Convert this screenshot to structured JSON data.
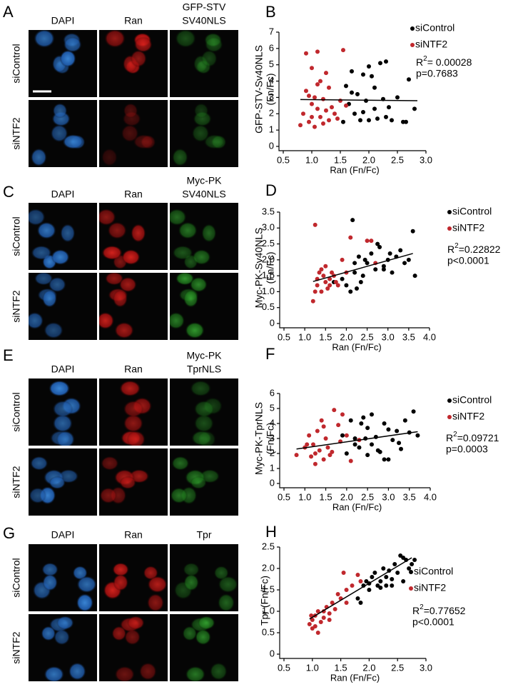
{
  "figure": {
    "panels": [
      {
        "letter": "A",
        "columns": [
          [
            "DAPI"
          ],
          [
            "Ran"
          ],
          [
            "GFP-STV",
            "SV40NLS"
          ]
        ],
        "rows": [
          "siControl",
          "siNTF2"
        ]
      },
      {
        "letter": "C",
        "columns": [
          [
            "DAPI"
          ],
          [
            "Ran"
          ],
          [
            "Myc-PK",
            "SV40NLS"
          ]
        ],
        "rows": [
          "siControl",
          "siNTF2"
        ]
      },
      {
        "letter": "E",
        "columns": [
          [
            "DAPI"
          ],
          [
            "Ran"
          ],
          [
            "Myc-PK",
            "TprNLS"
          ]
        ],
        "rows": [
          "siControl",
          "siNTF2"
        ]
      },
      {
        "letter": "G",
        "columns": [
          [
            "DAPI"
          ],
          [
            "Ran"
          ],
          [
            "Tpr"
          ]
        ],
        "rows": [
          "siControl",
          "siNTF2"
        ]
      }
    ]
  },
  "chart_data": [
    {
      "type": "scatter",
      "panel": "B",
      "xlabel": "Ran (Fn/Fc)",
      "ylabel": [
        "GFP-STV-Sv40NLS",
        "(Fn/Fc)"
      ],
      "xlim": [
        0.5,
        3.0
      ],
      "ylim": [
        0,
        7
      ],
      "xticks": [
        0.5,
        {
          "value": 1,
          "label": "1.0"
        },
        1.5,
        {
          "value": 2,
          "label": "2.0"
        },
        2.5,
        {
          "value": 3,
          "label": "3.0"
        }
      ],
      "yticks": [
        0,
        1,
        2,
        3,
        4,
        5,
        6,
        7
      ],
      "series": [
        {
          "name": "siControl",
          "color": "#000000",
          "x": [
            1.55,
            1.6,
            1.65,
            1.7,
            1.75,
            1.8,
            1.85,
            1.9,
            1.95,
            2.0,
            2.05,
            2.1,
            2.15,
            2.2,
            2.25,
            2.3,
            2.35,
            2.4,
            2.5,
            2.6,
            2.7,
            2.8,
            1.7,
            1.9,
            2.0,
            2.1,
            2.3,
            2.65
          ],
          "values": [
            1.5,
            3.7,
            2.6,
            4.6,
            2.0,
            3.2,
            1.6,
            4.4,
            2.8,
            1.6,
            4.3,
            2.3,
            1.7,
            5.1,
            2.9,
            1.8,
            2.4,
            1.6,
            3.0,
            1.5,
            4.1,
            2.3,
            3.3,
            2.1,
            4.9,
            3.6,
            5.2,
            1.5
          ]
        },
        {
          "name": "siNTF2",
          "color": "#c0282d",
          "x": [
            0.8,
            0.85,
            0.9,
            0.9,
            0.95,
            1.0,
            1.0,
            1.05,
            1.05,
            1.1,
            1.1,
            1.15,
            1.15,
            1.2,
            1.2,
            1.25,
            1.25,
            1.3,
            1.3,
            1.35,
            1.4,
            1.45,
            1.5,
            1.55,
            1.6,
            0.95,
            1.0,
            1.1
          ],
          "values": [
            1.3,
            2.0,
            5.7,
            3.4,
            1.5,
            2.6,
            4.8,
            1.2,
            3.0,
            2.3,
            5.8,
            1.8,
            4.0,
            1.4,
            2.9,
            2.2,
            4.5,
            1.6,
            3.6,
            2.4,
            2.0,
            1.7,
            2.8,
            5.9,
            2.5,
            3.1,
            1.8,
            3.8
          ]
        }
      ],
      "fit": {
        "x": [
          0.8,
          2.85
        ],
        "values": [
          2.87,
          2.8
        ]
      },
      "r2_label": "R",
      "r2_sup": "2",
      "r2_value": "= 0.00028",
      "p_value": "p=0.7683"
    },
    {
      "type": "scatter",
      "panel": "D",
      "xlabel": "Ran (Fn/Fc)",
      "ylabel": [
        "Myc-PK-Sv40NLS",
        "(Fn/Fc)"
      ],
      "xlim": [
        0.5,
        4.0
      ],
      "ylim": [
        0,
        3.5
      ],
      "xticks": [
        0.5,
        {
          "value": 1,
          "label": "1.0"
        },
        1.5,
        {
          "value": 2,
          "label": "2.0"
        },
        2.5,
        {
          "value": 3,
          "label": "3.0"
        },
        3.5,
        {
          "value": 4,
          "label": "4.0"
        }
      ],
      "yticks": [
        0,
        0.5,
        {
          "value": 1,
          "label": "1.0"
        },
        1.5,
        {
          "value": 2,
          "label": "2.0"
        },
        2.5,
        {
          "value": 3,
          "label": "3.0"
        },
        3.5
      ],
      "series": [
        {
          "name": "siControl",
          "color": "#000000",
          "x": [
            1.7,
            1.9,
            2.0,
            2.1,
            2.15,
            2.2,
            2.25,
            2.3,
            2.4,
            2.5,
            2.6,
            2.7,
            2.8,
            2.9,
            3.0,
            3.1,
            3.2,
            3.3,
            3.4,
            3.5,
            3.6,
            3.65,
            2.2,
            2.45,
            2.75,
            3.05,
            2.35,
            2.9
          ],
          "values": [
            1.3,
            1.4,
            1.2,
            1.0,
            3.25,
            1.6,
            1.1,
            2.1,
            1.5,
            1.9,
            2.2,
            1.7,
            2.4,
            1.8,
            2.0,
            1.6,
            2.1,
            2.3,
            1.9,
            2.0,
            2.9,
            1.5,
            1.9,
            2.0,
            2.5,
            2.2,
            1.3,
            1.7
          ]
        },
        {
          "name": "siNTF2",
          "color": "#c0282d",
          "x": [
            1.2,
            1.25,
            1.3,
            1.3,
            1.35,
            1.4,
            1.45,
            1.5,
            1.5,
            1.55,
            1.6,
            1.65,
            1.7,
            1.8,
            1.9,
            2.0,
            2.1,
            2.5,
            2.6,
            2.7,
            1.4,
            1.6,
            1.75,
            1.25
          ],
          "values": [
            0.7,
            3.1,
            1.4,
            1.2,
            1.6,
            1.0,
            1.5,
            1.3,
            1.8,
            1.1,
            1.4,
            1.6,
            1.5,
            1.2,
            2.0,
            1.6,
            2.7,
            2.6,
            2.6,
            1.9,
            1.7,
            1.2,
            1.3,
            1.0
          ]
        }
      ],
      "fit": {
        "x": [
          1.2,
          3.6
        ],
        "values": [
          1.32,
          2.2
        ]
      },
      "r2_label": "R",
      "r2_sup": "2",
      "r2_value": "=0.22822",
      "p_value": "p<0.0001"
    },
    {
      "type": "scatter",
      "panel": "F",
      "xlabel": "Ran (Fn/Fc)",
      "ylabel": [
        "Myc-PK-TprNLS",
        "(Fn/Fc)"
      ],
      "xlim": [
        0.5,
        4.0
      ],
      "ylim": [
        0,
        6
      ],
      "xticks": [
        0.5,
        {
          "value": 1,
          "label": "1.0"
        },
        1.5,
        {
          "value": 2,
          "label": "2.0"
        },
        2.5,
        {
          "value": 3,
          "label": "3.0"
        },
        3.5,
        {
          "value": 4,
          "label": "4.0"
        }
      ],
      "yticks": [
        0,
        1,
        2,
        3,
        4,
        5,
        6
      ],
      "series": [
        {
          "name": "siControl",
          "color": "#000000",
          "x": [
            1.9,
            2.0,
            2.1,
            2.2,
            2.3,
            2.4,
            2.5,
            2.5,
            2.6,
            2.6,
            2.7,
            2.8,
            2.9,
            3.0,
            3.1,
            3.2,
            3.3,
            3.4,
            3.5,
            3.6,
            3.7,
            2.2,
            2.45,
            2.75,
            3.0,
            3.25,
            2.9,
            2.35
          ],
          "values": [
            3.2,
            2.0,
            4.2,
            3.0,
            2.4,
            4.4,
            1.9,
            3.7,
            4.6,
            2.6,
            3.1,
            2.1,
            4.0,
            1.6,
            2.9,
            3.5,
            2.3,
            4.2,
            3.4,
            4.8,
            3.2,
            2.6,
            3.0,
            2.2,
            3.6,
            2.7,
            1.6,
            4.0
          ]
        },
        {
          "name": "siNTF2",
          "color": "#c0282d",
          "x": [
            0.8,
            1.0,
            1.1,
            1.15,
            1.2,
            1.25,
            1.3,
            1.35,
            1.4,
            1.45,
            1.5,
            1.55,
            1.6,
            1.7,
            1.8,
            1.85,
            1.9,
            2.0,
            2.1,
            2.3,
            1.25,
            1.45,
            1.65,
            1.05
          ],
          "values": [
            1.9,
            2.4,
            3.2,
            1.8,
            2.6,
            1.3,
            3.5,
            2.2,
            4.2,
            1.6,
            3.0,
            2.4,
            1.9,
            4.9,
            3.9,
            2.8,
            4.6,
            3.2,
            1.5,
            2.9,
            2.0,
            3.8,
            2.1,
            2.6
          ]
        }
      ],
      "fit": {
        "x": [
          0.8,
          3.7
        ],
        "values": [
          2.3,
          3.45
        ]
      },
      "r2_label": "R",
      "r2_sup": "2",
      "r2_value": "=0.09721",
      "p_value": "p=0.0003"
    },
    {
      "type": "scatter",
      "panel": "H",
      "xlabel": "Ran (Fn/Fc)",
      "ylabel": [
        "Tpr (Fn/Fc)"
      ],
      "xlim": [
        0.5,
        3.0
      ],
      "ylim": [
        0,
        2.5
      ],
      "xticks": [
        0.5,
        {
          "value": 1,
          "label": "1.0"
        },
        1.5,
        {
          "value": 2,
          "label": "2.0"
        },
        2.5,
        {
          "value": 3,
          "label": "3.0"
        }
      ],
      "yticks": [
        0,
        0.5,
        {
          "value": 1,
          "label": "1.0"
        },
        1.5,
        {
          "value": 2,
          "label": "2.0"
        },
        2.5
      ],
      "series": [
        {
          "name": "siControl",
          "color": "#000000",
          "x": [
            1.8,
            1.9,
            1.95,
            2.0,
            2.05,
            2.1,
            2.15,
            2.2,
            2.25,
            2.3,
            2.35,
            2.4,
            2.45,
            2.5,
            2.55,
            2.6,
            2.65,
            2.7,
            2.75,
            2.8,
            2.0,
            2.2,
            2.4,
            2.6,
            1.85,
            2.3
          ],
          "values": [
            1.3,
            1.6,
            1.7,
            1.5,
            1.8,
            1.9,
            1.6,
            1.7,
            2.0,
            1.8,
            1.95,
            1.6,
            2.1,
            1.9,
            2.3,
            1.7,
            2.2,
            2.0,
            2.1,
            2.2,
            1.65,
            1.55,
            1.75,
            2.25,
            1.2,
            1.6
          ]
        },
        {
          "name": "siNTF2",
          "color": "#c0282d",
          "x": [
            0.95,
            1.0,
            1.0,
            1.05,
            1.1,
            1.1,
            1.15,
            1.2,
            1.25,
            1.3,
            1.35,
            1.4,
            1.45,
            1.5,
            1.55,
            1.6,
            1.7,
            1.8,
            1.85,
            1.05,
            1.2,
            1.3,
            1.6,
            0.98
          ],
          "values": [
            0.7,
            0.8,
            0.6,
            0.9,
            0.5,
            1.0,
            0.75,
            0.85,
            1.1,
            0.95,
            1.2,
            1.05,
            1.4,
            1.3,
            1.9,
            1.5,
            1.6,
            1.85,
            1.7,
            0.65,
            1.0,
            0.8,
            1.2,
            0.9
          ]
        }
      ],
      "fit": {
        "x": [
          0.95,
          2.75
        ],
        "values": [
          0.82,
          2.25
        ]
      },
      "r2_label": "R",
      "r2_sup": "2",
      "r2_value": "=0.77652",
      "p_value": "p<0.0001"
    }
  ]
}
